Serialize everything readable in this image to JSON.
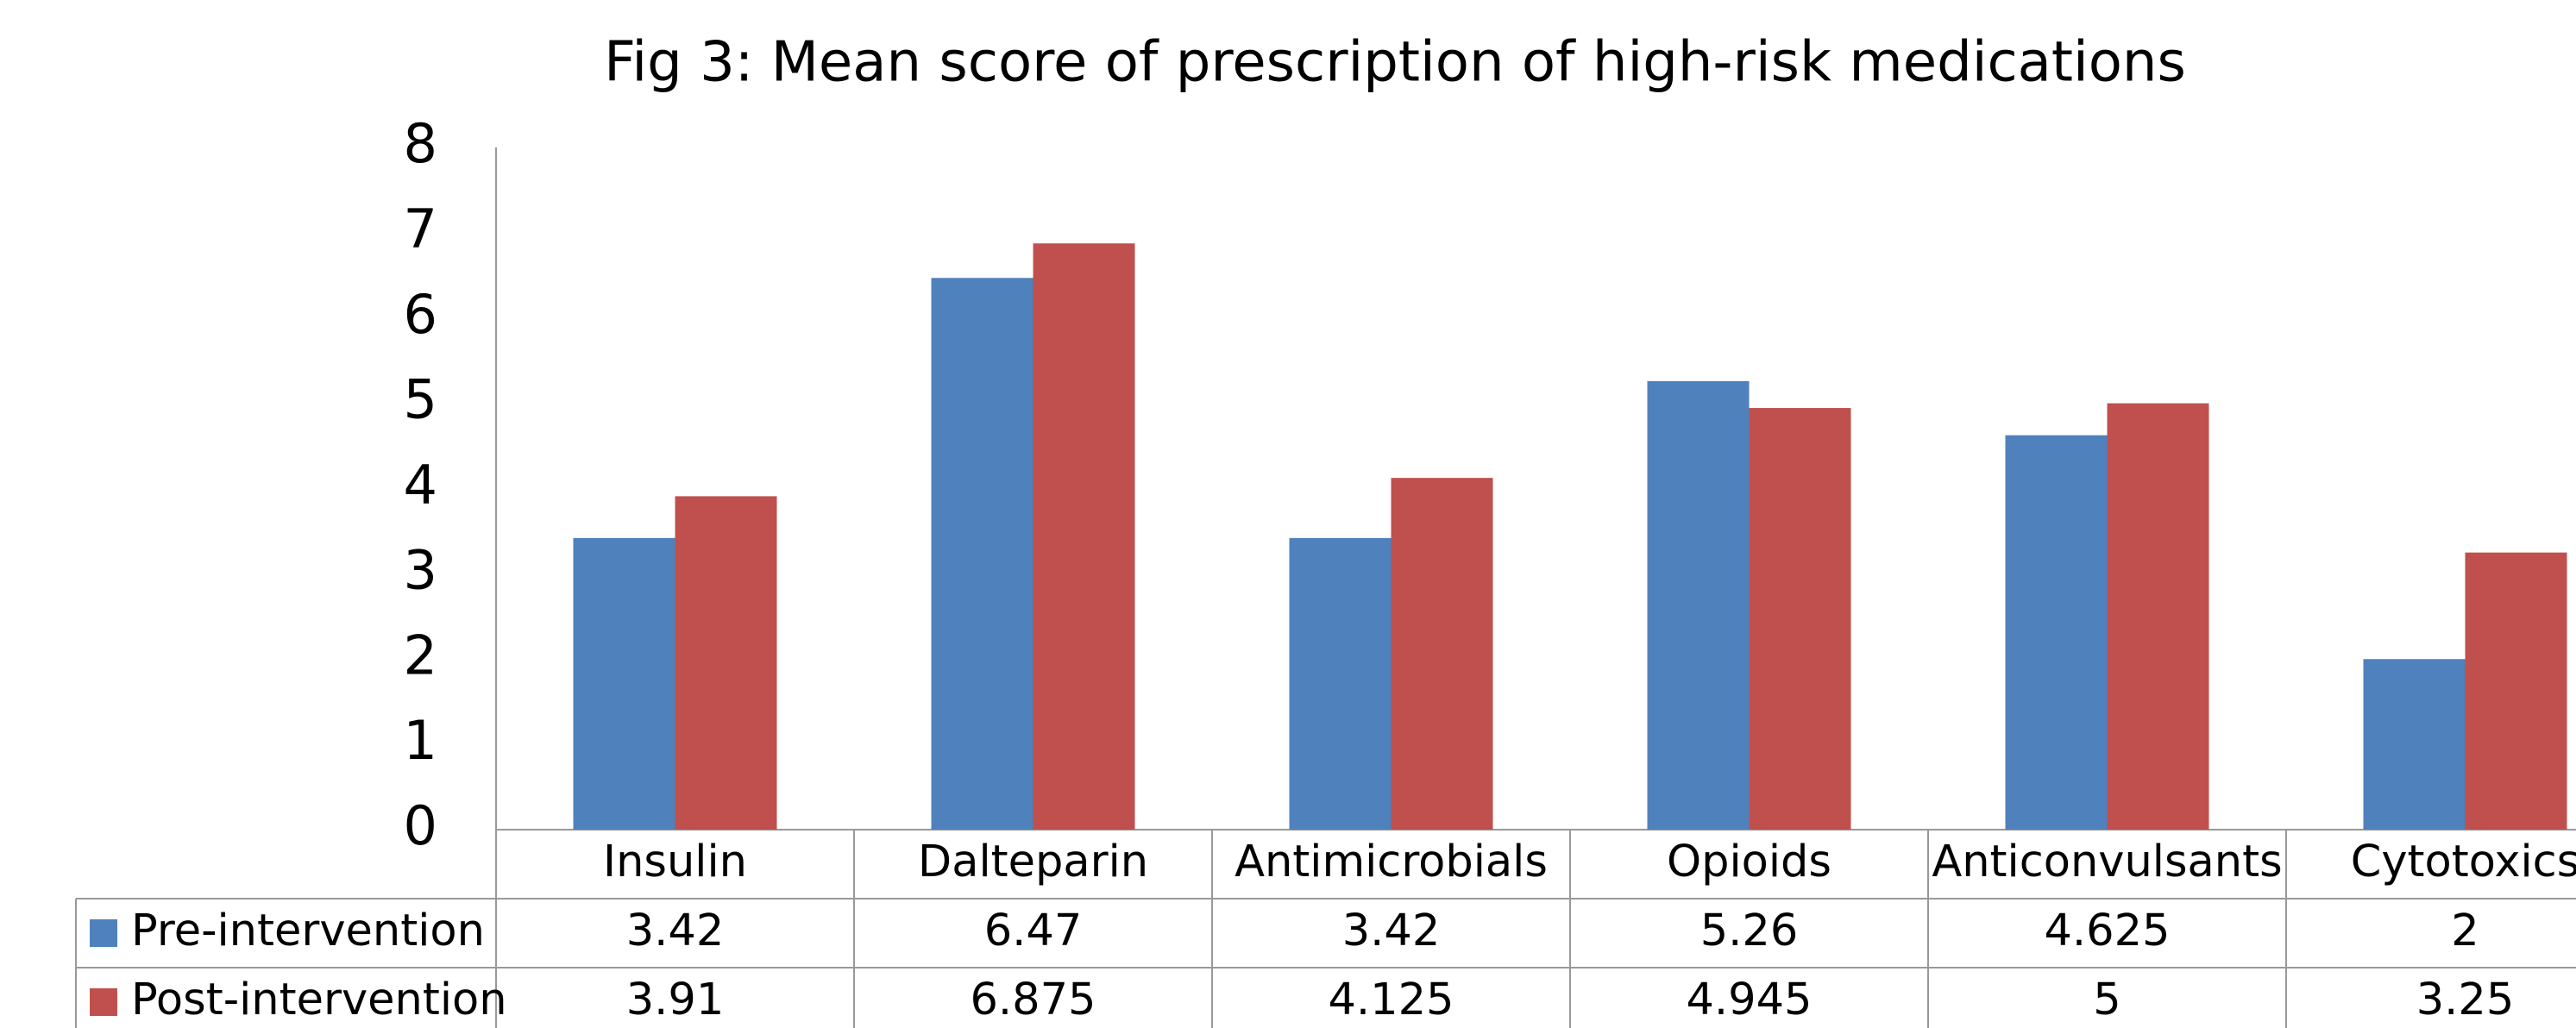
{
  "chart_data": {
    "type": "bar",
    "title": "Fig 3: Mean score of prescription of high-risk medications",
    "categories": [
      "Insulin",
      "Dalteparin",
      "Antimicrobials",
      "Opioids",
      "Anticonvulsants",
      "Cytotoxics"
    ],
    "series": [
      {
        "name": "Pre-intervention",
        "color": "#4f81bd",
        "values": [
          3.42,
          6.47,
          3.42,
          5.26,
          4.625,
          2
        ]
      },
      {
        "name": "Post-intervention",
        "color": "#c0504d",
        "values": [
          3.91,
          6.875,
          4.125,
          4.945,
          5,
          3.25
        ]
      }
    ],
    "ylim": [
      0,
      8
    ],
    "yticks": [
      0,
      1,
      2,
      3,
      4,
      5,
      6,
      7,
      8
    ],
    "grid": false
  }
}
